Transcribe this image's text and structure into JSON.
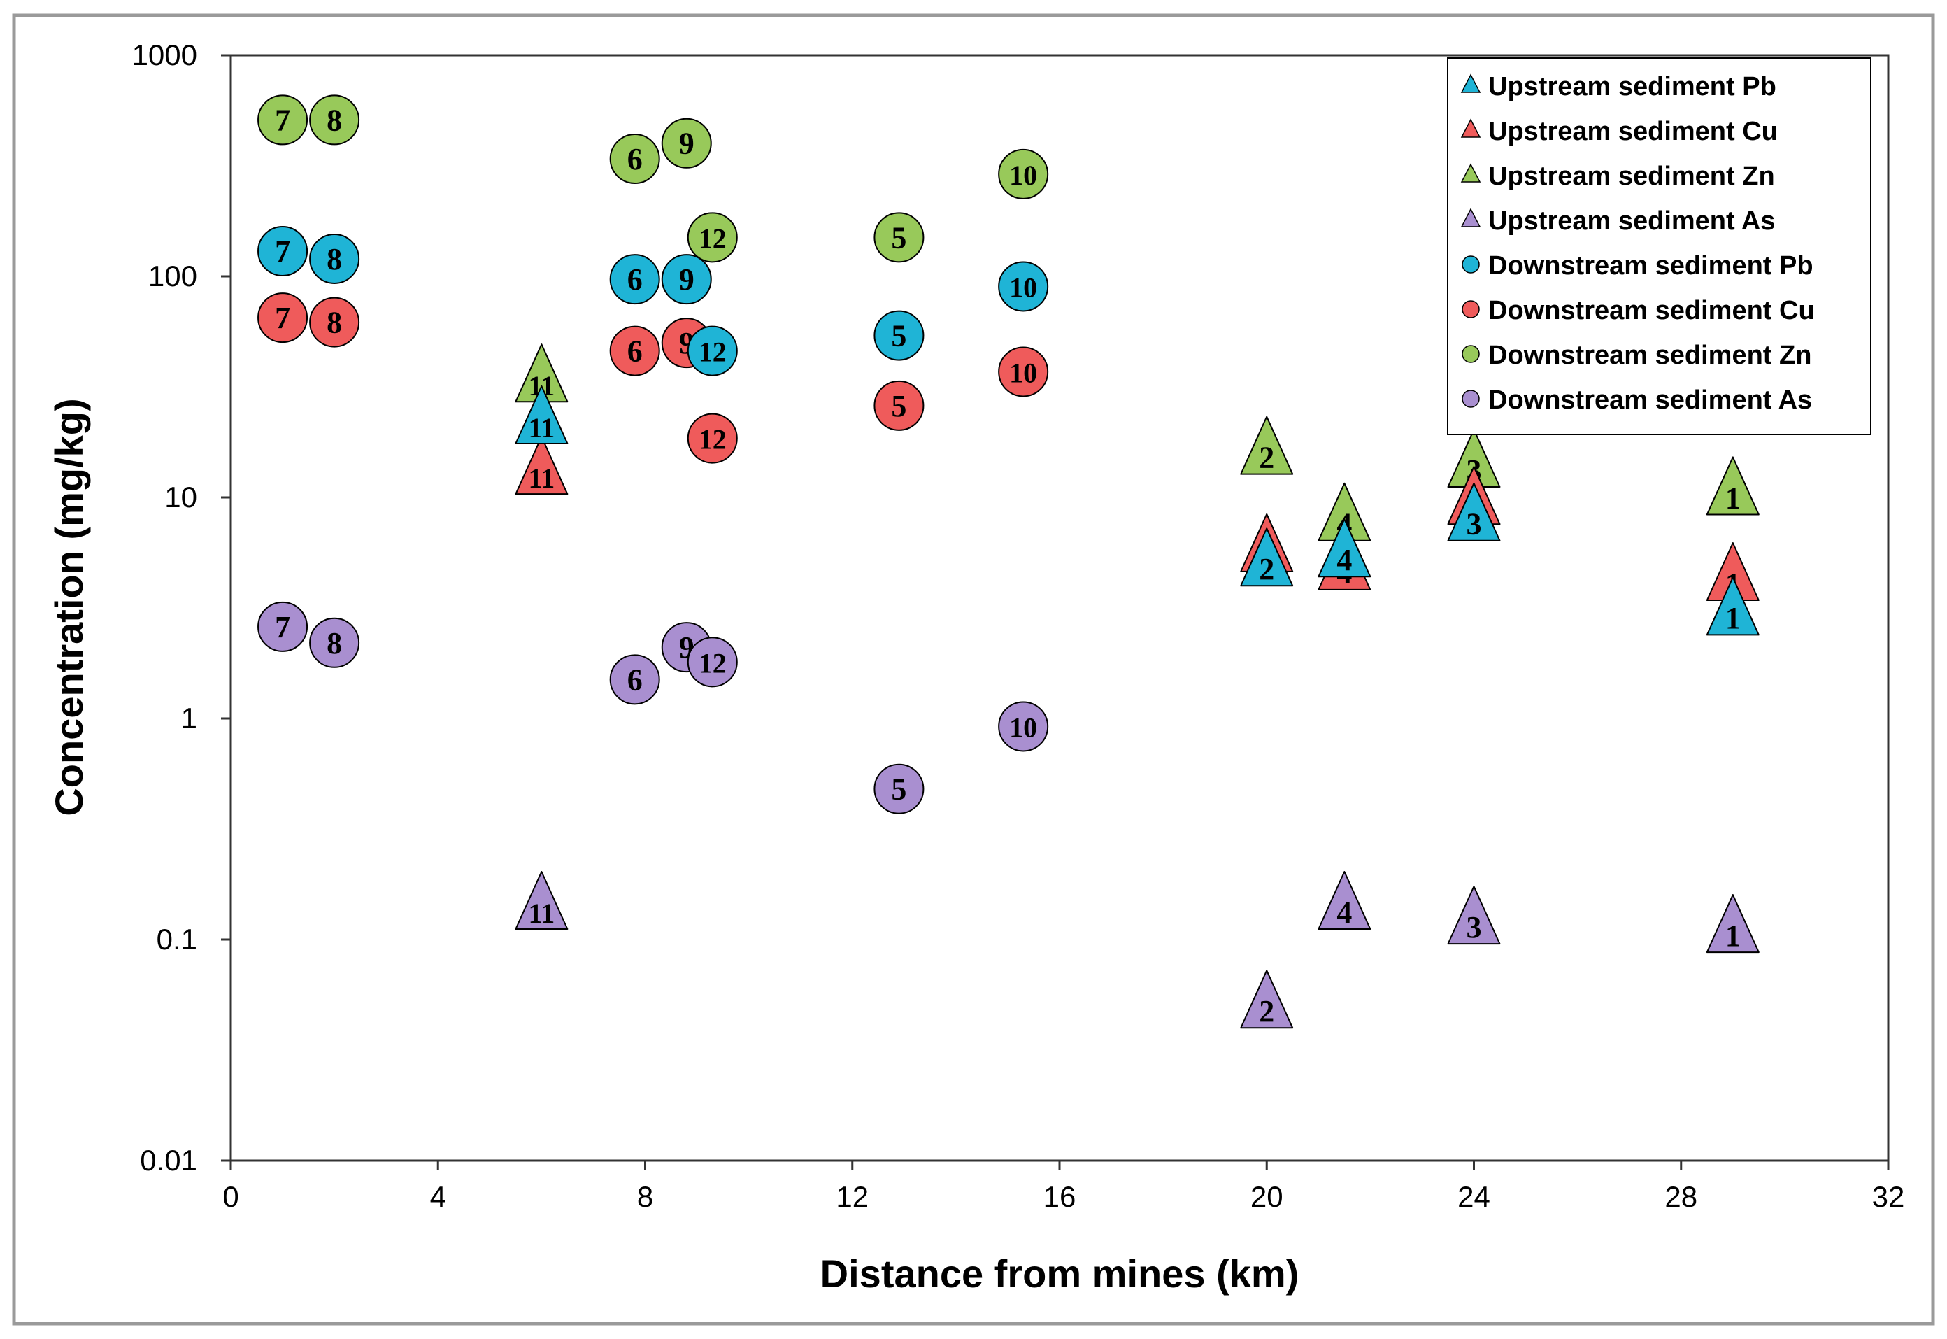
{
  "chart_data": {
    "type": "scatter",
    "title": "",
    "xlabel": "Distance from mines (km)",
    "ylabel": "Concentration (mg/kg)",
    "xlim": [
      0,
      32
    ],
    "ylim": [
      0.01,
      1000
    ],
    "yscale": "log",
    "grid": false,
    "legend_position": "top-right",
    "x_ticks": [
      "0",
      "4",
      "8",
      "12",
      "16",
      "20",
      "24",
      "28",
      "32"
    ],
    "y_ticks": [
      "1000",
      "100",
      "10",
      "1",
      "0.1",
      "0.01"
    ],
    "series": [
      {
        "name": "Upstream sediment Pb",
        "marker": "triangle",
        "color": "#1fb4d6",
        "points": [
          {
            "x": 6.0,
            "y": 22,
            "label": "11"
          },
          {
            "x": 20.0,
            "y": 5.0,
            "label": "2"
          },
          {
            "x": 21.5,
            "y": 5.5,
            "label": "4"
          },
          {
            "x": 24.0,
            "y": 8.0,
            "label": "3"
          },
          {
            "x": 29.0,
            "y": 3.0,
            "label": "1"
          }
        ]
      },
      {
        "name": "Upstream sediment Cu",
        "marker": "triangle",
        "color": "#ef5b5b",
        "points": [
          {
            "x": 6.0,
            "y": 13,
            "label": "11"
          },
          {
            "x": 20.0,
            "y": 5.8,
            "label": "2"
          },
          {
            "x": 21.5,
            "y": 4.8,
            "label": "4"
          },
          {
            "x": 24.0,
            "y": 9.5,
            "label": "3"
          },
          {
            "x": 29.0,
            "y": 4.3,
            "label": "1"
          }
        ]
      },
      {
        "name": "Upstream sediment Zn",
        "marker": "triangle",
        "color": "#98c95a",
        "points": [
          {
            "x": 6.0,
            "y": 34,
            "label": "11"
          },
          {
            "x": 20.0,
            "y": 16,
            "label": "2"
          },
          {
            "x": 21.5,
            "y": 8.0,
            "label": "4"
          },
          {
            "x": 24.0,
            "y": 14,
            "label": "3"
          },
          {
            "x": 29.0,
            "y": 10.5,
            "label": "1"
          }
        ]
      },
      {
        "name": "Upstream sediment As",
        "marker": "triangle",
        "color": "#a98fd0",
        "points": [
          {
            "x": 6.0,
            "y": 0.14,
            "label": "11"
          },
          {
            "x": 20.0,
            "y": 0.05,
            "label": "2"
          },
          {
            "x": 21.5,
            "y": 0.14,
            "label": "4"
          },
          {
            "x": 24.0,
            "y": 0.12,
            "label": "3"
          },
          {
            "x": 29.0,
            "y": 0.11,
            "label": "1"
          }
        ]
      },
      {
        "name": "Downstream sediment Pb",
        "marker": "circle",
        "color": "#1fb4d6",
        "points": [
          {
            "x": 1.0,
            "y": 130,
            "label": "7"
          },
          {
            "x": 2.0,
            "y": 120,
            "label": "8"
          },
          {
            "x": 7.8,
            "y": 97,
            "label": "6"
          },
          {
            "x": 8.8,
            "y": 97,
            "label": "9"
          },
          {
            "x": 9.3,
            "y": 46,
            "label": "12"
          },
          {
            "x": 12.9,
            "y": 54,
            "label": "5"
          },
          {
            "x": 15.3,
            "y": 90,
            "label": "10"
          }
        ]
      },
      {
        "name": "Downstream sediment Cu",
        "marker": "circle",
        "color": "#ef5b5b",
        "points": [
          {
            "x": 1.0,
            "y": 65,
            "label": "7"
          },
          {
            "x": 2.0,
            "y": 62,
            "label": "8"
          },
          {
            "x": 7.8,
            "y": 46,
            "label": "6"
          },
          {
            "x": 8.8,
            "y": 50,
            "label": "9"
          },
          {
            "x": 9.3,
            "y": 18.5,
            "label": "12"
          },
          {
            "x": 12.9,
            "y": 26,
            "label": "5"
          },
          {
            "x": 15.3,
            "y": 37,
            "label": "10"
          }
        ]
      },
      {
        "name": "Downstream sediment Zn",
        "marker": "circle",
        "color": "#98c95a",
        "points": [
          {
            "x": 1.0,
            "y": 510,
            "label": "7"
          },
          {
            "x": 2.0,
            "y": 510,
            "label": "8"
          },
          {
            "x": 7.8,
            "y": 340,
            "label": "6"
          },
          {
            "x": 8.8,
            "y": 400,
            "label": "9"
          },
          {
            "x": 9.3,
            "y": 150,
            "label": "12"
          },
          {
            "x": 12.9,
            "y": 150,
            "label": "5"
          },
          {
            "x": 15.3,
            "y": 290,
            "label": "10"
          }
        ]
      },
      {
        "name": "Downstream sediment As",
        "marker": "circle",
        "color": "#a98fd0",
        "points": [
          {
            "x": 1.0,
            "y": 2.6,
            "label": "7"
          },
          {
            "x": 2.0,
            "y": 2.2,
            "label": "8"
          },
          {
            "x": 7.8,
            "y": 1.5,
            "label": "6"
          },
          {
            "x": 8.8,
            "y": 2.1,
            "label": "9"
          },
          {
            "x": 9.3,
            "y": 1.8,
            "label": "12"
          },
          {
            "x": 12.9,
            "y": 0.48,
            "label": "5"
          },
          {
            "x": 15.3,
            "y": 0.92,
            "label": "10"
          }
        ]
      }
    ]
  }
}
